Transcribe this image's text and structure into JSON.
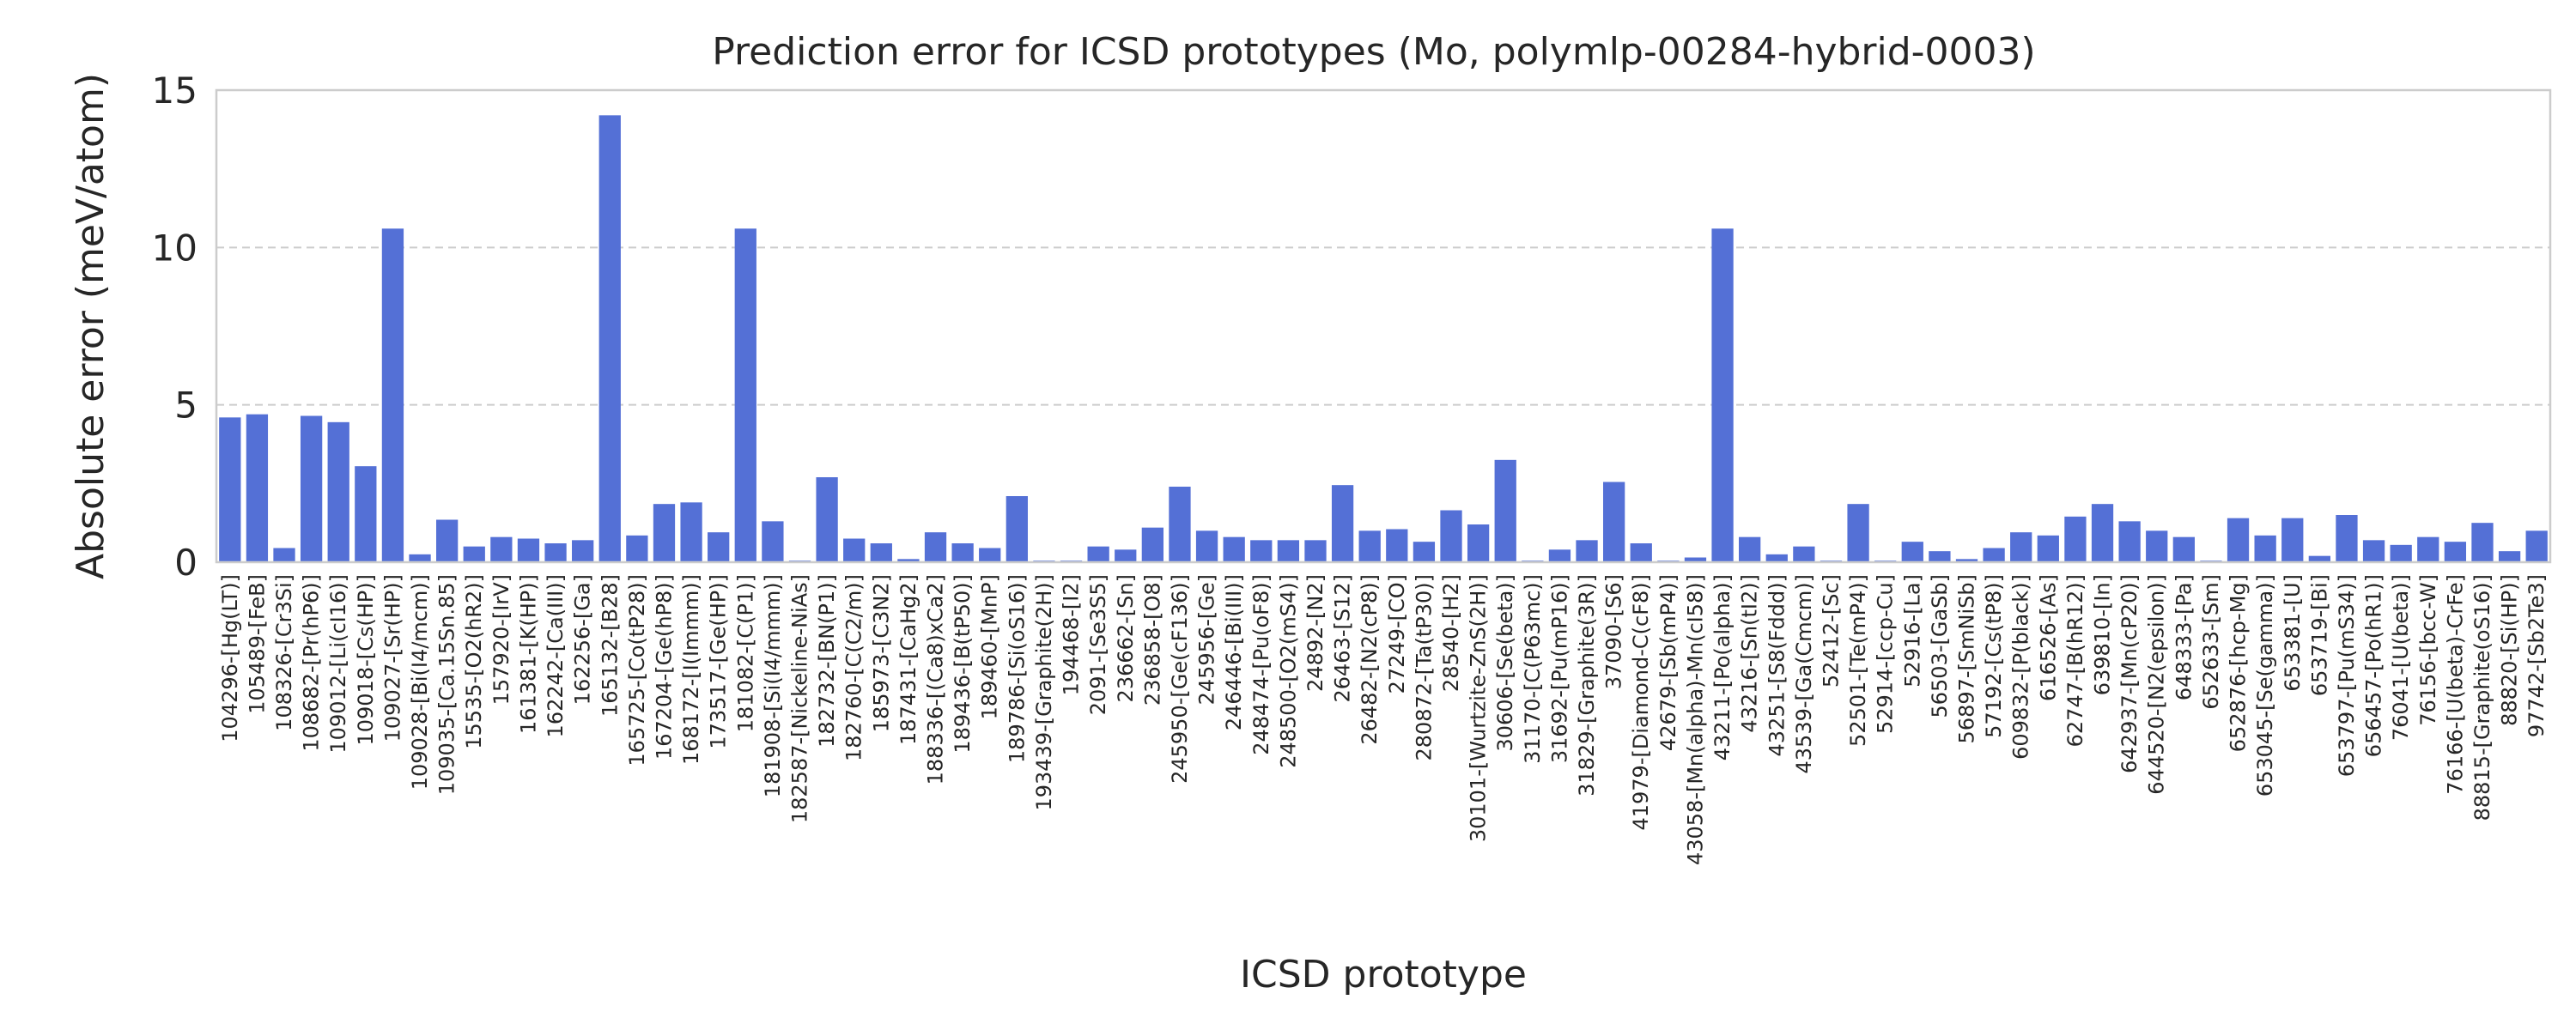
{
  "chart_data": {
    "type": "bar",
    "title": "Prediction error for ICSD prototypes (Mo, polymlp-00284-hybrid-0003)",
    "xlabel": "ICSD prototype",
    "ylabel": "Absolute error (meV/atom)",
    "ylim": [
      0,
      15
    ],
    "yticks": [
      0,
      5,
      10,
      15
    ],
    "grid": "y dashed",
    "bar_color": "#5470d6",
    "categories": [
      "104296-[Hg(LT)]",
      "105489-[FeB]",
      "108326-[Cr3Si]",
      "108682-[Pr(hP6)]",
      "109012-[Li(cI16)]",
      "109018-[Cs(HP)]",
      "109027-[Sr(HP)]",
      "109028-[Bi(I4/mcm)]",
      "109035-[Ca.15Sn.85]",
      "15535-[O2(hR2)]",
      "157920-[IrV]",
      "161381-[K(HP)]",
      "162242-[Ca(III)]",
      "162256-[Ga]",
      "165132-[B28]",
      "165725-[Co(tP28)]",
      "167204-[Ge(hP8)]",
      "168172-[I(Immm)]",
      "173517-[Ge(HP)]",
      "181082-[C(P1)]",
      "181908-[Si(I4/mmm)]",
      "182587-[Nickeline-NiAs]",
      "182732-[BN(P1)]",
      "182760-[C(C2/m)]",
      "185973-[C3N2]",
      "187431-[CaHg2]",
      "188336-[(Ca8)xCa2]",
      "189436-[B(tP50)]",
      "189460-[MnP]",
      "189786-[Si(oS16)]",
      "193439-[Graphite(2H)]",
      "194468-[I2]",
      "2091-[Se3S5]",
      "236662-[Sn]",
      "236858-[O8]",
      "245950-[Ge(cF136)]",
      "245956-[Ge]",
      "246446-[Bi(III)]",
      "248474-[Pu(oF8)]",
      "248500-[O2(mS4)]",
      "24892-[N2]",
      "26463-[S12]",
      "26482-[N2(cP8)]",
      "27249-[CO]",
      "280872-[Ta(tP30)]",
      "28540-[H2]",
      "30101-[Wurtzite-ZnS(2H)]",
      "30606-[Se(beta)]",
      "31170-[C(P63mc)]",
      "31692-[Pu(mP16)]",
      "31829-[Graphite(3R)]",
      "37090-[S6]",
      "41979-[Diamond-C(cF8)]",
      "42679-[Sb(mP4)]",
      "43058-[Mn(alpha)-Mn(cI58)]",
      "43211-[Po(alpha)]",
      "43216-[Sn(tI2)]",
      "43251-[S8(Fddd)]",
      "43539-[Ga(Cmcm)]",
      "52412-[Sc]",
      "52501-[Te(mP4)]",
      "52914-[ccp-Cu]",
      "52916-[La]",
      "56503-[GaSb]",
      "56897-[SmNiSb]",
      "57192-[Cs(tP8)]",
      "609832-[P(black)]",
      "616526-[As]",
      "62747-[B(hR12)]",
      "639810-[In]",
      "642937-[Mn(cP20)]",
      "644520-[N2(epsilon)]",
      "648333-[Pa]",
      "652633-[Sm]",
      "652876-[hcp-Mg]",
      "653045-[Se(gamma)]",
      "653381-[U]",
      "653719-[Bi]",
      "653797-[Pu(mS34)]",
      "656457-[Po(hR1)]",
      "76041-[U(beta)]",
      "76156-[bcc-W]",
      "76166-[U(beta)-CrFe]",
      "88815-[Graphite(oS16)]",
      "88820-[Si(HP)]",
      "97742-[Sb2Te3]"
    ],
    "values": [
      4.6,
      4.7,
      0.45,
      4.65,
      4.45,
      3.05,
      10.6,
      0.25,
      1.35,
      0.5,
      0.8,
      0.75,
      0.6,
      0.7,
      14.2,
      0.85,
      1.85,
      1.9,
      0.95,
      10.6,
      1.3,
      0.05,
      2.7,
      0.75,
      0.6,
      0.1,
      0.95,
      0.6,
      0.45,
      2.1,
      0.05,
      0.05,
      0.5,
      0.4,
      1.1,
      2.4,
      1.0,
      0.8,
      0.7,
      0.7,
      0.7,
      2.45,
      1.0,
      1.05,
      0.65,
      1.65,
      1.2,
      3.25,
      0.05,
      0.4,
      0.7,
      2.55,
      0.6,
      0.05,
      0.15,
      10.6,
      0.8,
      0.25,
      0.5,
      0.05,
      1.85,
      0.05,
      0.65,
      0.35,
      0.1,
      0.45,
      0.95,
      0.85,
      1.45,
      1.85,
      1.3,
      1.0,
      0.8,
      0.05,
      1.4,
      0.85,
      1.4,
      0.2,
      1.5,
      0.7,
      0.55,
      0.8,
      0.65,
      1.25,
      0.35,
      1.0
    ]
  }
}
